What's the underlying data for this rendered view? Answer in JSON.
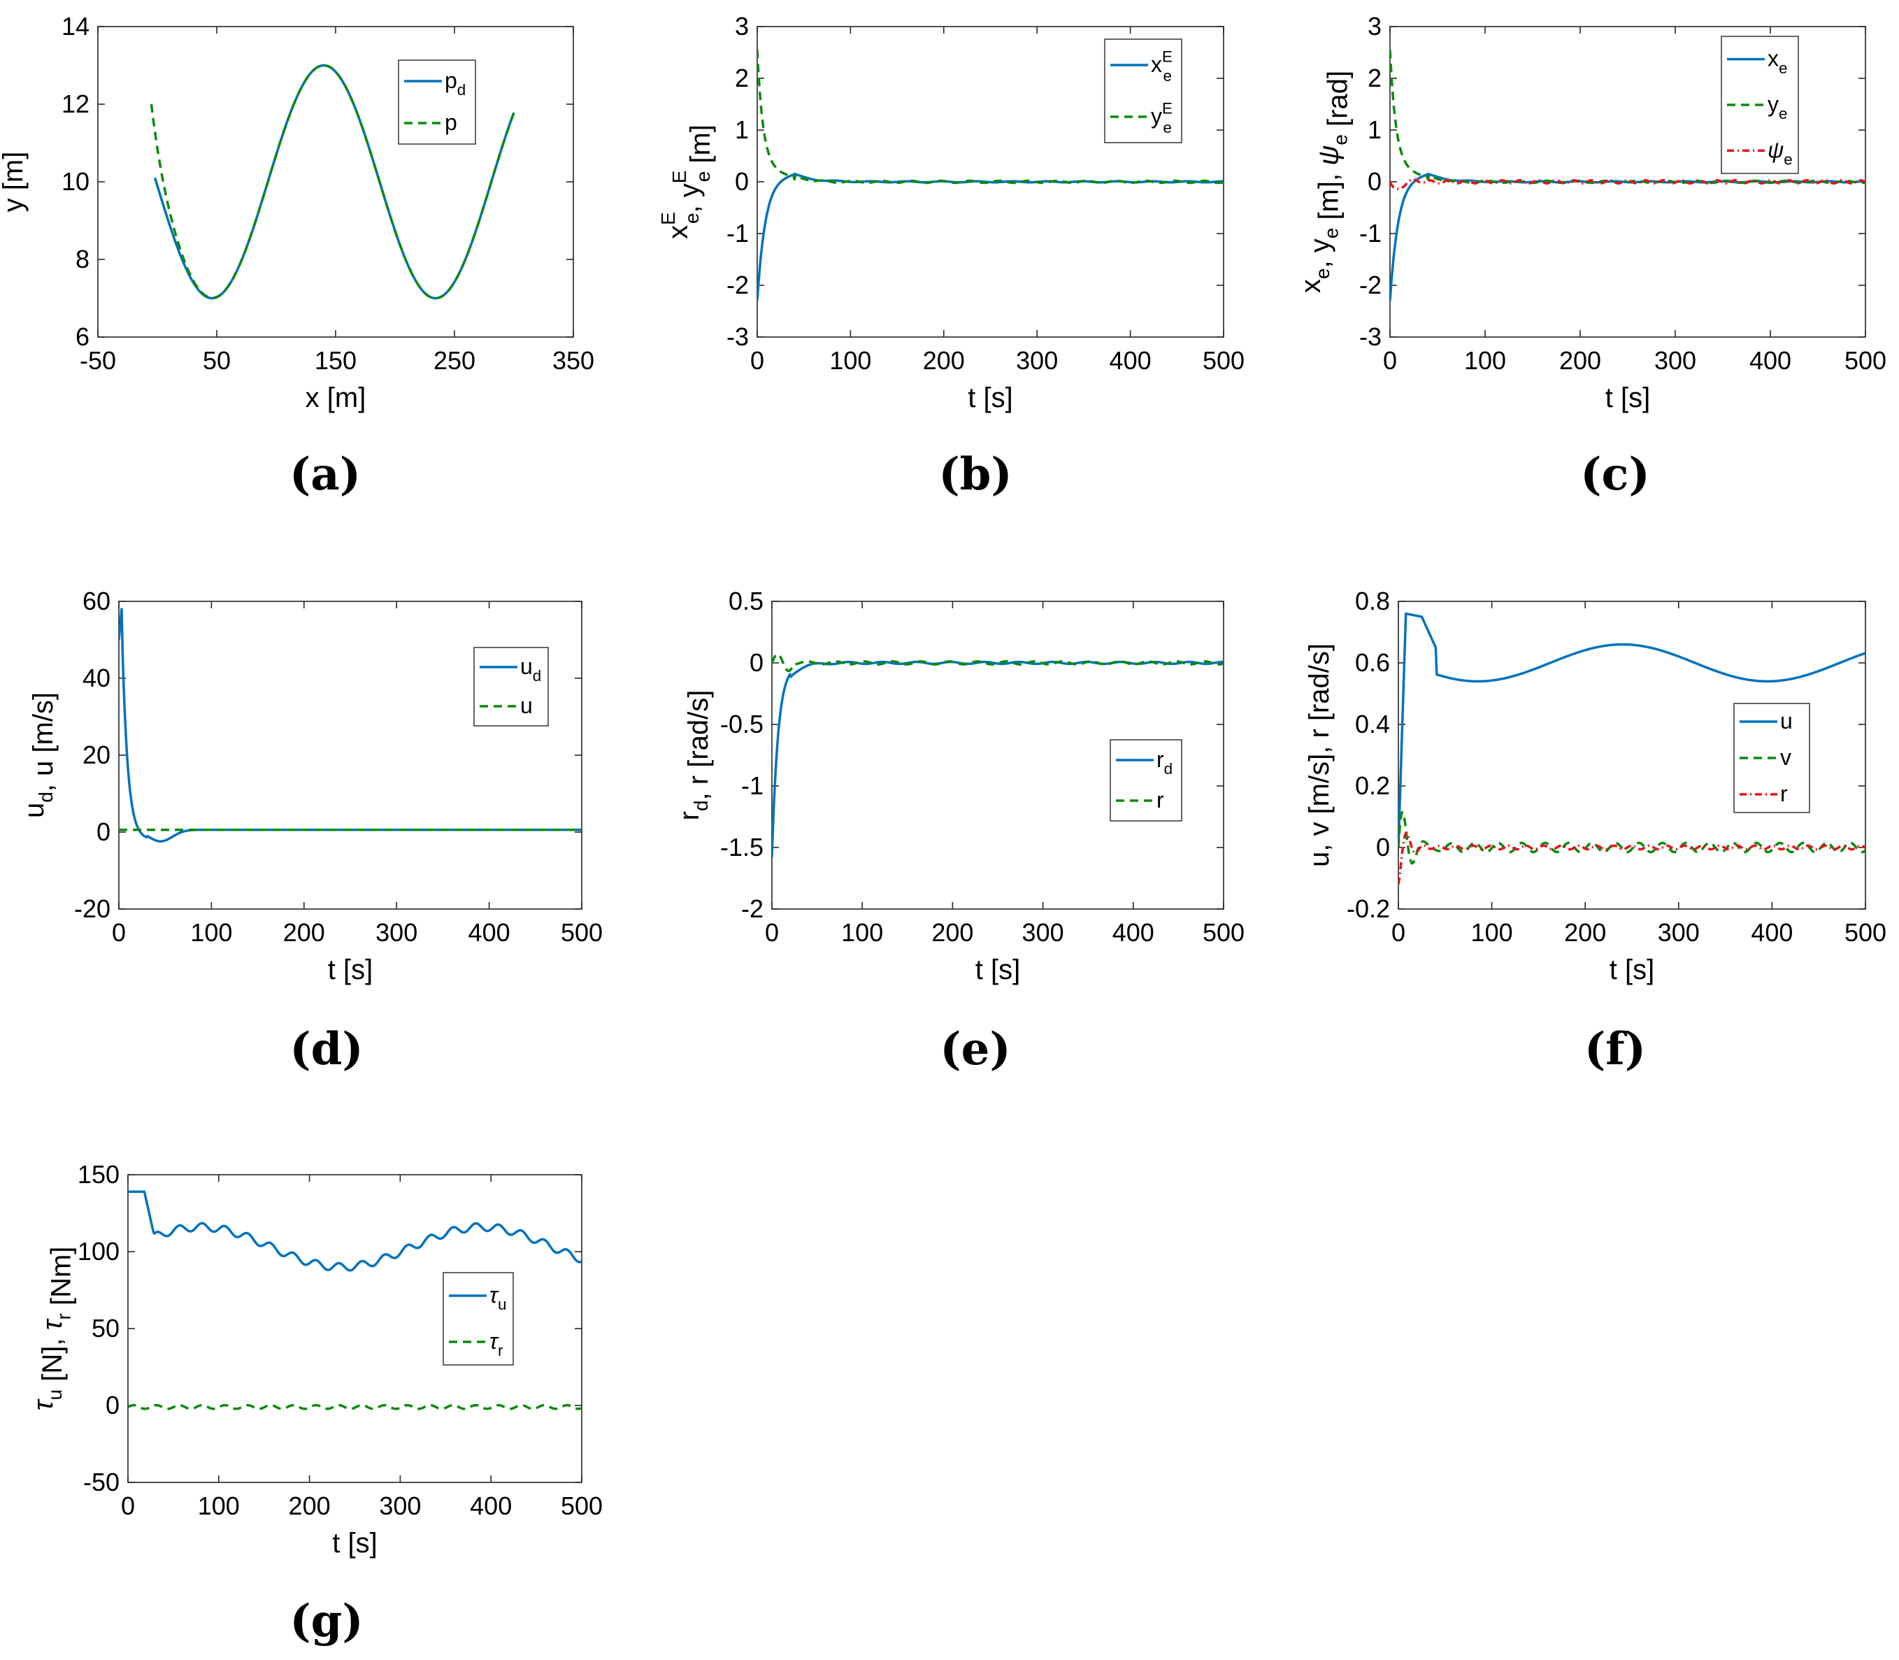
{
  "figure": {
    "panels": [
      "(a)",
      "(b)",
      "(c)",
      "(d)",
      "(e)",
      "(f)",
      "(g)"
    ]
  },
  "colors": {
    "blue": "#0072BD",
    "green": "#0B8A0B",
    "red": "#E8131A",
    "axis": "#262626"
  },
  "chart_data": [
    {
      "id": "a",
      "type": "line",
      "caption": "(a)",
      "xlabel": "x [m]",
      "ylabel": "y [m]",
      "xlim": [
        -50,
        350
      ],
      "ylim": [
        6,
        14
      ],
      "xticks": [
        "-50",
        "50",
        "150",
        "250",
        "350"
      ],
      "yticks": [
        "6",
        "8",
        "10",
        "12",
        "14"
      ],
      "legend": {
        "position": "top-right",
        "entries": [
          {
            "label": "p",
            "sub": "d",
            "sup": ""
          },
          {
            "label": "p",
            "sub": "",
            "sup": ""
          }
        ]
      },
      "series": [
        {
          "name": "pd",
          "color": "blue",
          "dash": "solid",
          "width": 3.5,
          "fn": "pd_xy"
        },
        {
          "name": "p",
          "color": "green",
          "dash": "dashed",
          "width": 3.5,
          "fn": "p_xy"
        }
      ]
    },
    {
      "id": "b",
      "type": "line",
      "caption": "(b)",
      "xlabel": "t [s]",
      "ylabel": "x_e^E, y_e^E [m]",
      "ylabel_parts": [
        {
          "t": "x",
          "sub": "e",
          "sup": "E"
        },
        {
          "t": ", y",
          "sub": "e",
          "sup": "E"
        },
        {
          "t": " [m]"
        }
      ],
      "xlim": [
        0,
        500
      ],
      "ylim": [
        -3,
        3
      ],
      "xticks": [
        "0",
        "100",
        "200",
        "300",
        "400",
        "500"
      ],
      "yticks": [
        "-3",
        "-2",
        "-1",
        "0",
        "1",
        "2",
        "3"
      ],
      "legend": {
        "position": "top-right",
        "entries": [
          {
            "label": "x",
            "sub": "e",
            "sup": "E"
          },
          {
            "label": "y",
            "sub": "e",
            "sup": "E"
          }
        ]
      },
      "series": [
        {
          "name": "xeE",
          "color": "blue",
          "dash": "solid",
          "width": 3.5,
          "fn": "xe"
        },
        {
          "name": "yeE",
          "color": "green",
          "dash": "dashed",
          "width": 3.5,
          "fn": "ye"
        }
      ]
    },
    {
      "id": "c",
      "type": "line",
      "caption": "(c)",
      "xlabel": "t [s]",
      "ylabel": "x_e, y_e [m], psi_e [rad]",
      "ylabel_parts": [
        {
          "t": "x",
          "sub": "e"
        },
        {
          "t": ", y",
          "sub": "e"
        },
        {
          "t": " [m], "
        },
        {
          "t": "ψ",
          "sub": "e",
          "italic": true
        },
        {
          "t": " [rad]"
        }
      ],
      "xlim": [
        0,
        500
      ],
      "ylim": [
        -3,
        3
      ],
      "xticks": [
        "0",
        "100",
        "200",
        "300",
        "400",
        "500"
      ],
      "yticks": [
        "-3",
        "-2",
        "-1",
        "0",
        "1",
        "2",
        "3"
      ],
      "legend": {
        "position": "top-right",
        "entries": [
          {
            "label": "x",
            "sub": "e",
            "sup": ""
          },
          {
            "label": "y",
            "sub": "e",
            "sup": ""
          },
          {
            "label": "ψ",
            "sub": "e",
            "sup": "",
            "italic": true
          }
        ]
      },
      "series": [
        {
          "name": "xe",
          "color": "blue",
          "dash": "solid",
          "width": 3.5,
          "fn": "xe"
        },
        {
          "name": "ye",
          "color": "green",
          "dash": "dashed",
          "width": 3.5,
          "fn": "ye"
        },
        {
          "name": "psie",
          "color": "red",
          "dash": "dashdot",
          "width": 3.5,
          "fn": "psie"
        }
      ]
    },
    {
      "id": "d",
      "type": "line",
      "caption": "(d)",
      "xlabel": "t [s]",
      "ylabel": "u_d, u [m/s]",
      "ylabel_parts": [
        {
          "t": "u",
          "sub": "d"
        },
        {
          "t": ", u [m/s]"
        }
      ],
      "xlim": [
        0,
        500
      ],
      "ylim": [
        -20,
        60
      ],
      "xticks": [
        "0",
        "100",
        "200",
        "300",
        "400",
        "500"
      ],
      "yticks": [
        "-20",
        "0",
        "20",
        "40",
        "60"
      ],
      "legend": {
        "position": "right",
        "entries": [
          {
            "label": "u",
            "sub": "d",
            "sup": ""
          },
          {
            "label": "u",
            "sub": "",
            "sup": ""
          }
        ]
      },
      "series": [
        {
          "name": "ud",
          "color": "blue",
          "dash": "solid",
          "width": 3.5,
          "fn": "ud"
        },
        {
          "name": "u",
          "color": "green",
          "dash": "dashed",
          "width": 3.5,
          "fn": "u_small"
        }
      ]
    },
    {
      "id": "e",
      "type": "line",
      "caption": "(e)",
      "xlabel": "t [s]",
      "ylabel": "r_d, r [rad/s]",
      "ylabel_parts": [
        {
          "t": "r",
          "sub": "d"
        },
        {
          "t": ", r [rad/s]"
        }
      ],
      "xlim": [
        0,
        500
      ],
      "ylim": [
        -2,
        0.5
      ],
      "xticks": [
        "0",
        "100",
        "200",
        "300",
        "400",
        "500"
      ],
      "yticks": [
        "-2",
        "-1.5",
        "-1",
        "-0.5",
        "0",
        "0.5"
      ],
      "legend": {
        "position": "right",
        "entries": [
          {
            "label": "r",
            "sub": "d",
            "sup": ""
          },
          {
            "label": "r",
            "sub": "",
            "sup": ""
          }
        ]
      },
      "series": [
        {
          "name": "rd",
          "color": "blue",
          "dash": "solid",
          "width": 3.5,
          "fn": "rd"
        },
        {
          "name": "r",
          "color": "green",
          "dash": "dashed",
          "width": 3.5,
          "fn": "r_small"
        }
      ]
    },
    {
      "id": "f",
      "type": "line",
      "caption": "(f)",
      "xlabel": "t [s]",
      "ylabel": "u, v [m/s], r [rad/s]",
      "xlim": [
        0,
        500
      ],
      "ylim": [
        -0.2,
        0.8
      ],
      "xticks": [
        "0",
        "100",
        "200",
        "300",
        "400",
        "500"
      ],
      "yticks": [
        "-0.2",
        "0",
        "0.2",
        "0.4",
        "0.6",
        "0.8"
      ],
      "legend": {
        "position": "right",
        "entries": [
          {
            "label": "u",
            "sub": "",
            "sup": ""
          },
          {
            "label": "v",
            "sub": "",
            "sup": ""
          },
          {
            "label": "r",
            "sub": "",
            "sup": ""
          }
        ]
      },
      "series": [
        {
          "name": "u",
          "color": "blue",
          "dash": "solid",
          "width": 3.5,
          "fn": "u_speed"
        },
        {
          "name": "v",
          "color": "green",
          "dash": "dashed",
          "width": 3.5,
          "fn": "v_speed"
        },
        {
          "name": "r",
          "color": "red",
          "dash": "dashdot",
          "width": 3.5,
          "fn": "r_speed"
        }
      ]
    },
    {
      "id": "g",
      "type": "line",
      "caption": "(g)",
      "xlabel": "t [s]",
      "ylabel": "tau_u [N], tau_r [Nm]",
      "ylabel_parts": [
        {
          "t": "τ",
          "sub": "u",
          "italic": true
        },
        {
          "t": " [N], "
        },
        {
          "t": "τ",
          "sub": "r",
          "italic": true
        },
        {
          "t": " [Nm]"
        }
      ],
      "xlim": [
        0,
        500
      ],
      "ylim": [
        -50,
        150
      ],
      "xticks": [
        "0",
        "100",
        "200",
        "300",
        "400",
        "500"
      ],
      "yticks": [
        "-50",
        "0",
        "50",
        "100",
        "150"
      ],
      "legend": {
        "position": "right",
        "entries": [
          {
            "label": "τ",
            "sub": "u",
            "sup": "",
            "italic": true
          },
          {
            "label": "τ",
            "sub": "r",
            "sup": "",
            "italic": true
          }
        ]
      },
      "series": [
        {
          "name": "tau_u",
          "color": "blue",
          "dash": "solid",
          "width": 3.5,
          "fn": "tau_u"
        },
        {
          "name": "tau_r",
          "color": "green",
          "dash": "dashed",
          "width": 3.5,
          "fn": "tau_r"
        }
      ]
    }
  ]
}
